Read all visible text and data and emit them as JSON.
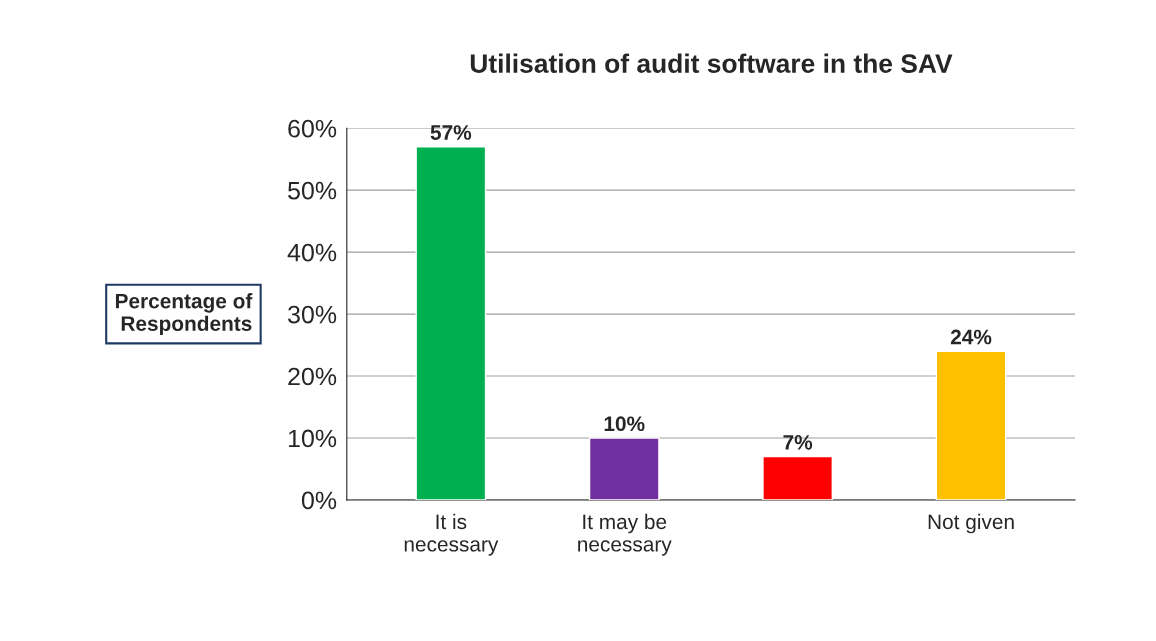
{
  "chart_data": {
    "type": "bar",
    "title": "Utilisation of audit software in the SAV",
    "ylabel": "Percentage of\nRespondents",
    "categories": [
      "It is\nnecessary",
      "It may be\nnecessary",
      null,
      "Not given"
    ],
    "values": [
      57,
      10,
      7,
      24
    ],
    "colors": [
      "#00b050",
      "#7030a0",
      "#ff0000",
      "#ffc000"
    ],
    "value_labels": [
      "57%",
      "10%",
      "7%",
      "24%"
    ],
    "ylim": [
      0,
      60
    ],
    "yticks": [
      {
        "value": 0,
        "label": "0%"
      },
      {
        "value": 10,
        "label": "10%"
      },
      {
        "value": 20,
        "label": "20%"
      },
      {
        "value": 30,
        "label": "30%"
      },
      {
        "value": 40,
        "label": "40%"
      },
      {
        "value": 50,
        "label": "50%"
      },
      {
        "value": 60,
        "label": "60%"
      }
    ],
    "grid": "y",
    "legend": false
  }
}
